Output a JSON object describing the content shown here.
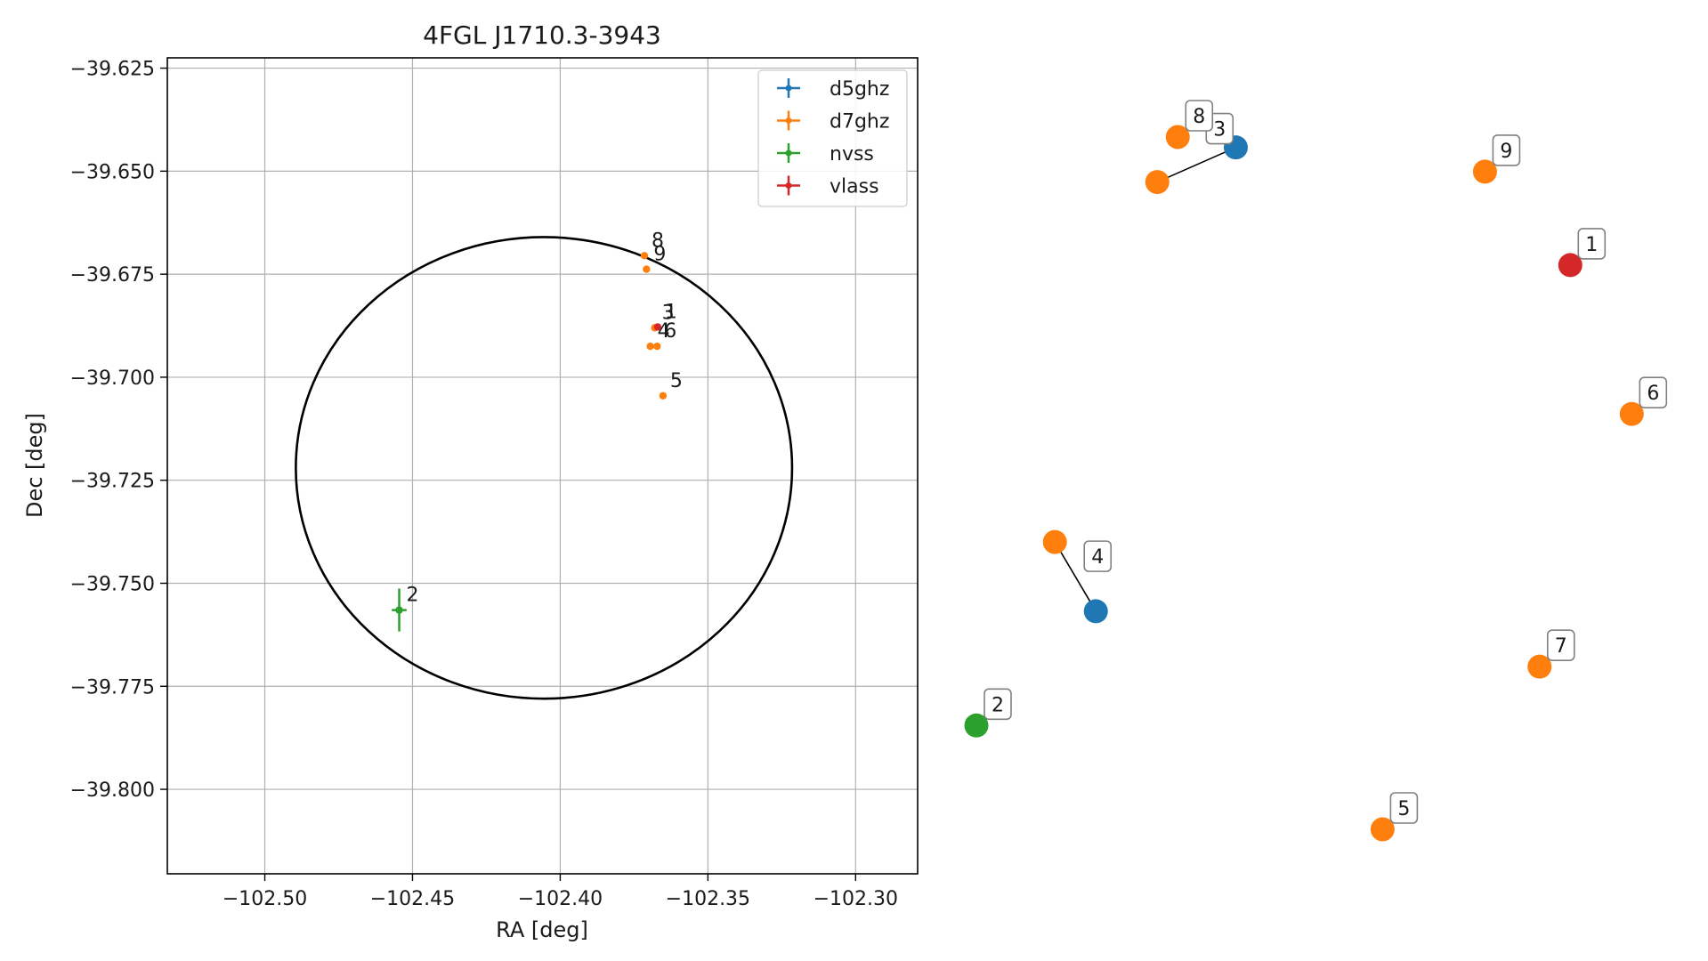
{
  "chart_data": [
    {
      "type": "scatter",
      "title": "4FGL J1710.3-3943",
      "xlabel": "RA [deg]",
      "ylabel": "Dec [deg]",
      "xlim": [
        -102.533,
        -102.279
      ],
      "ylim": [
        -39.8205,
        -39.6225
      ],
      "x_ticks": [
        -102.5,
        -102.45,
        -102.4,
        -102.35,
        -102.3
      ],
      "x_tick_labels": [
        "−102.50",
        "−102.45",
        "−102.40",
        "−102.35",
        "−102.30"
      ],
      "y_ticks": [
        -39.625,
        -39.65,
        -39.675,
        -39.7,
        -39.725,
        -39.75,
        -39.775,
        -39.8
      ],
      "y_tick_labels": [
        "−39.625",
        "−39.650",
        "−39.675",
        "−39.700",
        "−39.725",
        "−39.750",
        "−39.775",
        "−39.800"
      ],
      "grid": true,
      "legend_position": "top-right",
      "ellipse": {
        "center": [
          -102.4055,
          -39.722
        ],
        "a_deg": 0.084,
        "b_deg": 0.056,
        "color": "#000000"
      },
      "series": [
        {
          "name": "d5ghz",
          "color": "#1f77b4",
          "points": []
        },
        {
          "name": "d7ghz",
          "color": "#ff7f0e",
          "points": [
            {
              "label": "8",
              "x": -102.3715,
              "y": -39.6705
            },
            {
              "label": "9",
              "x": -102.3708,
              "y": -39.6738
            },
            {
              "label": "3",
              "x": -102.368,
              "y": -39.688
            },
            {
              "label": "4",
              "x": -102.3695,
              "y": -39.6925
            },
            {
              "label": "6",
              "x": -102.3672,
              "y": -39.6925
            },
            {
              "label": "5",
              "x": -102.3652,
              "y": -39.7045
            }
          ]
        },
        {
          "name": "nvss",
          "color": "#2ca02c",
          "points": [
            {
              "label": "2",
              "x": -102.4545,
              "y": -39.7565,
              "xerr": 0.0025,
              "yerr": 0.0052
            }
          ]
        },
        {
          "name": "vlass",
          "color": "#d62728",
          "points": [
            {
              "label": "1",
              "x": -102.367,
              "y": -39.6878
            }
          ]
        }
      ]
    },
    {
      "type": "scatter",
      "title": "",
      "points": [
        {
          "label": "1",
          "series": "vlass",
          "color": "#d62728",
          "x": 0.87,
          "y": 0.815
        },
        {
          "label": "2",
          "series": "nvss",
          "color": "#2ca02c",
          "x": 0.0,
          "y": 0.15
        },
        {
          "label": "3",
          "series": "d7ghz",
          "color": "#ff7f0e",
          "x": 0.265,
          "y": 0.935
        },
        {
          "label": "3",
          "series": "d5ghz",
          "color": "#1f77b4",
          "x": 0.38,
          "y": 0.985
        },
        {
          "label": "4",
          "series": "d7ghz",
          "color": "#ff7f0e",
          "x": 0.115,
          "y": 0.415
        },
        {
          "label": "4",
          "series": "d5ghz",
          "color": "#1f77b4",
          "x": 0.175,
          "y": 0.315
        },
        {
          "label": "5",
          "series": "d7ghz",
          "color": "#ff7f0e",
          "x": 0.595,
          "y": 0.0
        },
        {
          "label": "6",
          "series": "d7ghz",
          "color": "#ff7f0e",
          "x": 0.96,
          "y": 0.6
        },
        {
          "label": "7",
          "series": "d7ghz",
          "color": "#ff7f0e",
          "x": 0.825,
          "y": 0.235
        },
        {
          "label": "8",
          "series": "d7ghz",
          "color": "#ff7f0e",
          "x": 0.295,
          "y": 1.0
        },
        {
          "label": "9",
          "series": "d7ghz",
          "color": "#ff7f0e",
          "x": 0.745,
          "y": 0.95
        }
      ],
      "links": [
        {
          "label": "3",
          "from": 2,
          "to": 3
        },
        {
          "label": "4",
          "from": 4,
          "to": 5
        }
      ]
    }
  ]
}
